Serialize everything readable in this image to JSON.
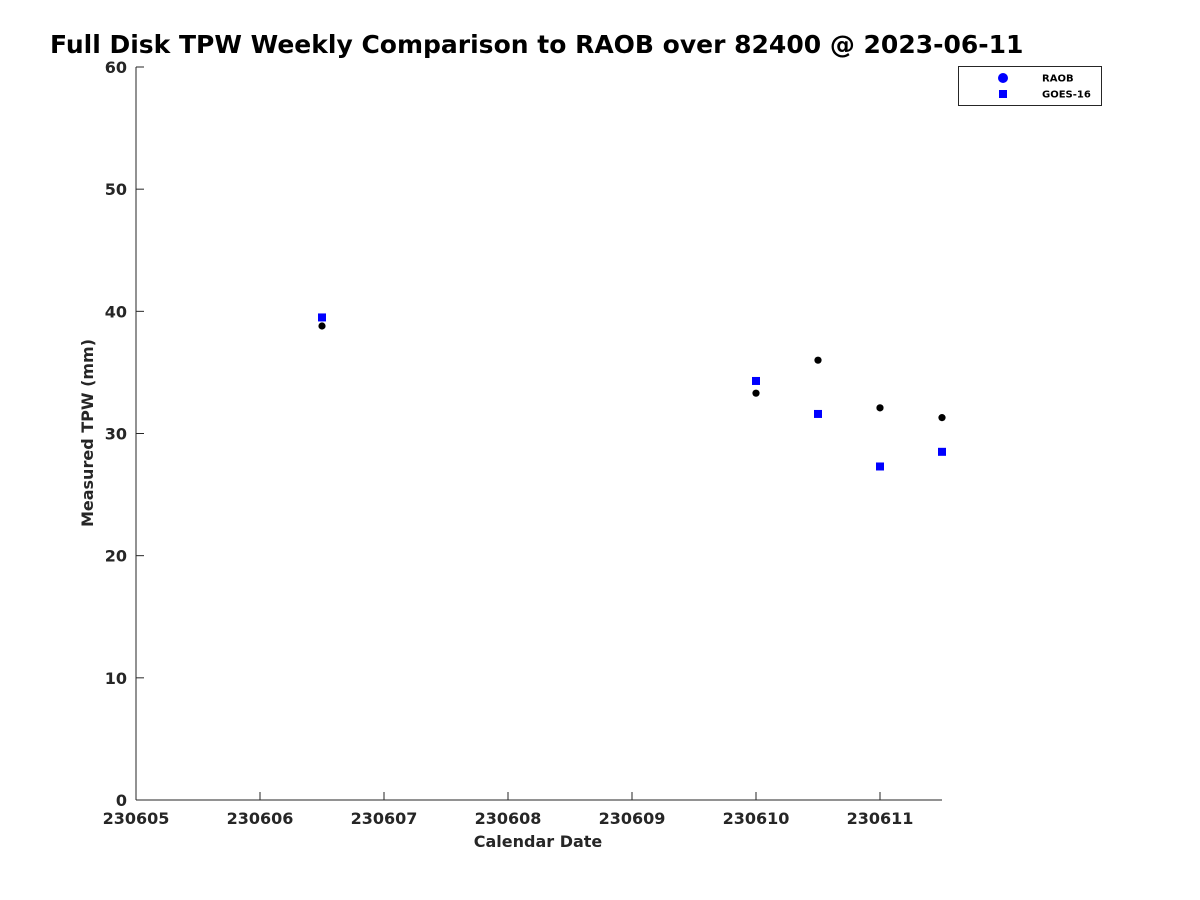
{
  "chart_data": {
    "type": "scatter",
    "title": "Full Disk TPW Weekly Comparison to RAOB over 82400 @ 2023-06-11",
    "xlabel": "Calendar Date",
    "ylabel": "Measured TPW (mm)",
    "x_ticks": [
      "230605",
      "230606",
      "230607",
      "230608",
      "230609",
      "230610",
      "230611"
    ],
    "y_ticks": [
      0,
      10,
      20,
      30,
      40,
      50,
      60
    ],
    "ylim": [
      0,
      60
    ],
    "grid": false,
    "legend_position": "top-right",
    "series": [
      {
        "name": "RAOB",
        "marker": "circle",
        "color": "#000000",
        "legend_color": "#0000ff",
        "points": [
          {
            "x": "2023-06-06 12:00",
            "y": 38.8
          },
          {
            "x": "2023-06-10 00:00",
            "y": 33.3
          },
          {
            "x": "2023-06-10 12:00",
            "y": 36.0
          },
          {
            "x": "2023-06-11 00:00",
            "y": 32.1
          },
          {
            "x": "2023-06-11 12:00",
            "y": 31.3
          }
        ]
      },
      {
        "name": "GOES-16",
        "marker": "square",
        "color": "#0000ff",
        "legend_color": "#0000ff",
        "points": [
          {
            "x": "2023-06-06 12:00",
            "y": 39.5
          },
          {
            "x": "2023-06-10 00:00",
            "y": 34.3
          },
          {
            "x": "2023-06-10 12:00",
            "y": 31.6
          },
          {
            "x": "2023-06-11 00:00",
            "y": 27.3
          },
          {
            "x": "2023-06-11 12:00",
            "y": 28.5
          }
        ]
      }
    ]
  }
}
